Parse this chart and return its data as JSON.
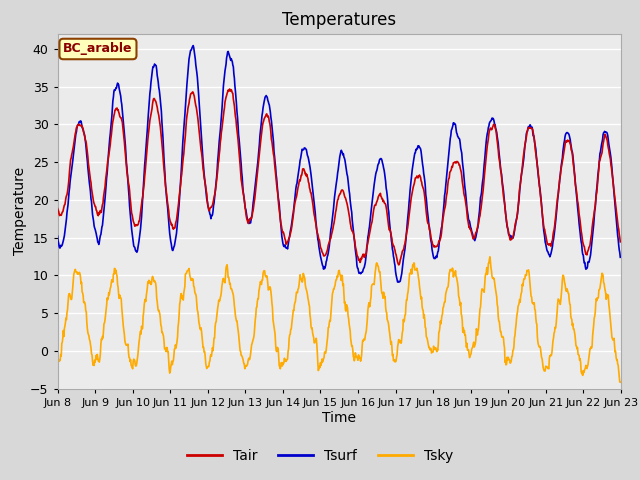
{
  "title": "Temperatures",
  "xlabel": "Time",
  "ylabel": "Temperature",
  "xlim_days": [
    8,
    23
  ],
  "ylim": [
    -5,
    42
  ],
  "yticks": [
    -5,
    0,
    5,
    10,
    15,
    20,
    25,
    30,
    35,
    40
  ],
  "xtick_labels": [
    "Jun 8",
    "Jun 9",
    "Jun 10",
    "Jun 11",
    "Jun 12",
    "Jun 13",
    "Jun 14",
    "Jun 15",
    "Jun 16",
    "Jun 17",
    "Jun 18",
    "Jun 19",
    "Jun 20",
    "Jun 21",
    "Jun 22",
    "Jun 23"
  ],
  "annotation_text": "BC_arable",
  "tair_color": "#cc0000",
  "tsurf_color": "#0000cc",
  "tsky_color": "#ffaa00",
  "fig_bg_color": "#d8d8d8",
  "plot_bg_color": "#ebebeb",
  "linewidth": 1.2,
  "legend_fontsize": 10,
  "title_fontsize": 12,
  "tick_fontsize": 8
}
